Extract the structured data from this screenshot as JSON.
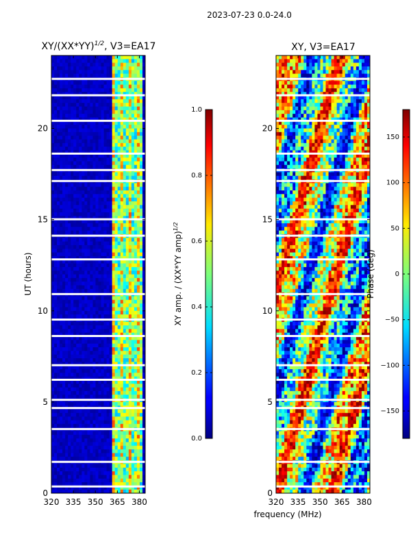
{
  "figure_title": "2023-07-23 0.0-24.0",
  "shared_xlabel": "frequency (MHz)",
  "chart_data": [
    {
      "type": "heatmap",
      "title_main": "XY/(XX*YY)",
      "title_sup": "1/2",
      "title_tail": ", V3=EA17",
      "ylabel": "UT (hours)",
      "xlabel": "frequency (MHz)",
      "x_ticks": [
        "320",
        "335",
        "350",
        "365",
        "380"
      ],
      "x_tick_values": [
        320,
        335,
        350,
        365,
        380
      ],
      "xlim": [
        320,
        384
      ],
      "y_ticks": [
        "0",
        "5",
        "10",
        "15",
        "20"
      ],
      "y_tick_values": [
        0,
        5,
        10,
        15,
        20
      ],
      "ylim": [
        0,
        24
      ],
      "colorbar": {
        "label_main": "XY amp. / (XX*YY amp)",
        "label_sup": "1/2",
        "range": [
          0.0,
          1.0
        ],
        "ticks": [
          "0.0",
          "0.2",
          "0.4",
          "0.6",
          "0.8",
          "1.0"
        ],
        "tick_values": [
          0.0,
          0.2,
          0.4,
          0.6,
          0.8,
          1.0
        ]
      },
      "gap_hours": [
        0.35,
        1.7,
        3.5,
        4.65,
        5.1,
        6.2,
        7.0,
        8.6,
        9.5,
        10.9,
        12.8,
        14.1,
        15.0,
        17.1,
        17.7,
        18.6,
        20.4,
        21.8,
        22.7
      ],
      "high_band_mhz": [
        361,
        382
      ]
    },
    {
      "type": "heatmap",
      "title": "XY, V3=EA17",
      "ylabel": "Phase (deg)",
      "x_ticks": [
        "320",
        "335",
        "350",
        "365",
        "380"
      ],
      "x_tick_values": [
        320,
        335,
        350,
        365,
        380
      ],
      "xlim": [
        320,
        384
      ],
      "y_ticks": [
        "0",
        "5",
        "10",
        "15",
        "20"
      ],
      "y_tick_values": [
        0,
        5,
        10,
        15,
        20
      ],
      "ylim": [
        0,
        24
      ],
      "colorbar": {
        "label": "Phase (deg)",
        "range": [
          -180,
          180
        ],
        "ticks": [
          "−150",
          "−100",
          "−50",
          "0",
          "50",
          "100",
          "150"
        ],
        "tick_values": [
          -150,
          -100,
          -50,
          0,
          50,
          100,
          150
        ]
      },
      "gap_hours": [
        0.35,
        1.7,
        3.5,
        4.65,
        5.1,
        6.2,
        7.0,
        8.6,
        9.5,
        10.9,
        12.8,
        14.1,
        15.0,
        17.1,
        17.7,
        18.6,
        20.4,
        21.8,
        22.7
      ]
    }
  ]
}
